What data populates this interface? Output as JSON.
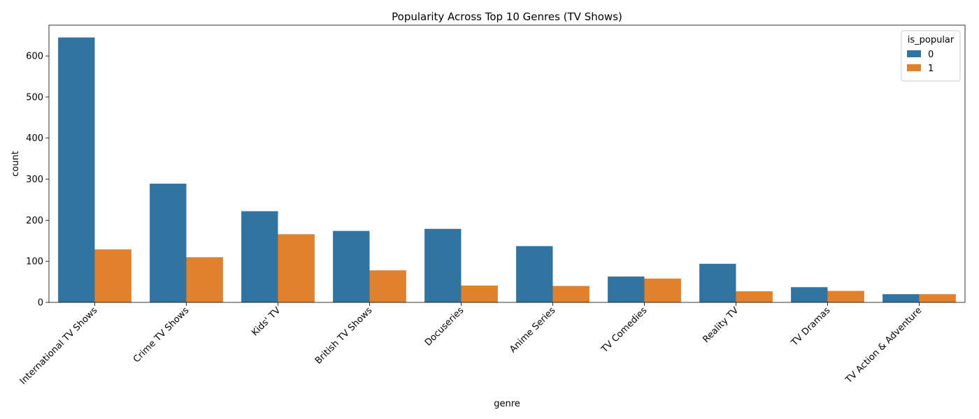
{
  "chart_data": {
    "type": "bar",
    "title": "Popularity Across Top 10 Genres (TV Shows)",
    "xlabel": "genre",
    "ylabel": "count",
    "ylim": [
      0,
      675
    ],
    "yticks": [
      0,
      100,
      200,
      300,
      400,
      500,
      600
    ],
    "grid": false,
    "legend_title": "is_popular",
    "legend_position": "top-right",
    "categories": [
      "International TV Shows",
      "Crime TV Shows",
      "Kids' TV",
      "British TV Shows",
      "Docuseries",
      "Anime Series",
      "TV Comedies",
      "Reality TV",
      "TV Dramas",
      "TV Action & Adventure"
    ],
    "series": [
      {
        "name": "0",
        "color": "#3274a1",
        "values": [
          645,
          289,
          222,
          174,
          179,
          137,
          63,
          94,
          37,
          20
        ]
      },
      {
        "name": "1",
        "color": "#e1812c",
        "values": [
          129,
          110,
          166,
          78,
          41,
          40,
          58,
          27,
          28,
          20
        ]
      }
    ]
  }
}
